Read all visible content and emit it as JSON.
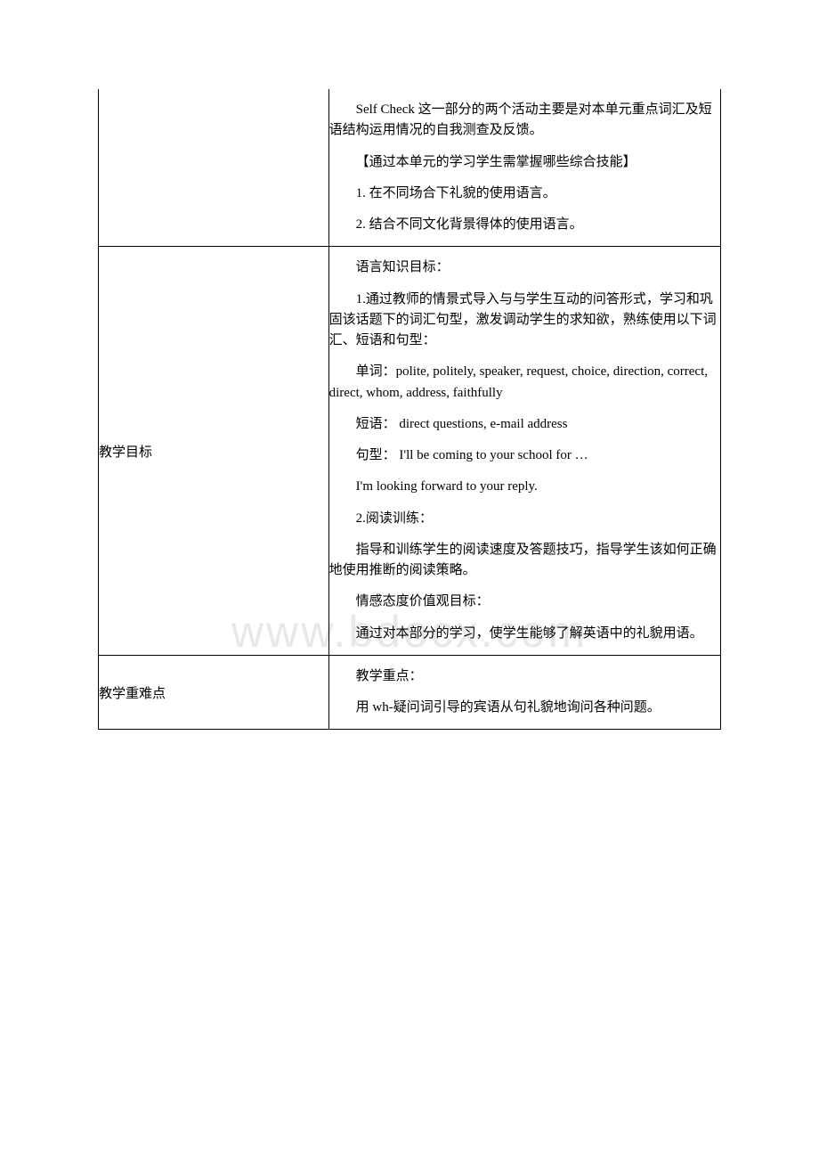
{
  "watermark": "www.bdocx.com",
  "table": {
    "rows": [
      {
        "left": "",
        "right": [
          "Self Check 这一部分的两个活动主要是对本单元重点词汇及短语结构运用情况的自我测查及反馈。",
          "【通过本单元的学习学生需掌握哪些综合技能】",
          "1. 在不同场合下礼貌的使用语言。",
          "2. 结合不同文化背景得体的使用语言。"
        ]
      },
      {
        "left": "教学目标",
        "right": [
          "语言知识目标：",
          "1.通过教师的情景式导入与与学生互动的问答形式，学习和巩固该话题下的词汇句型，激发调动学生的求知欲，熟练使用以下词汇、短语和句型：",
          "单词：polite, politely, speaker, request, choice, direction, correct, direct, whom, address, faithfully",
          "短语： direct questions, e-mail address",
          "句型： I'll be coming to your school for …",
          "I'm looking forward to your reply.",
          "2.阅读训练：",
          "指导和训练学生的阅读速度及答题技巧，指导学生该如何正确地使用推断的阅读策略。",
          "情感态度价值观目标：",
          "通过对本部分的学习，使学生能够了解英语中的礼貌用语。"
        ]
      },
      {
        "left": "教学重难点",
        "right": [
          "教学重点：",
          "用 wh-疑问词引导的宾语从句礼貌地询问各种问题。"
        ]
      }
    ]
  },
  "style": {
    "font_size_body": 15,
    "font_size_watermark": 50,
    "text_color": "#000000",
    "watermark_color": "#e8e8e8",
    "border_color": "#000000",
    "background_color": "#ffffff",
    "line_height": 1.55,
    "text_indent_em": 2,
    "col_left_width_pct": 37,
    "col_right_width_pct": 63
  }
}
